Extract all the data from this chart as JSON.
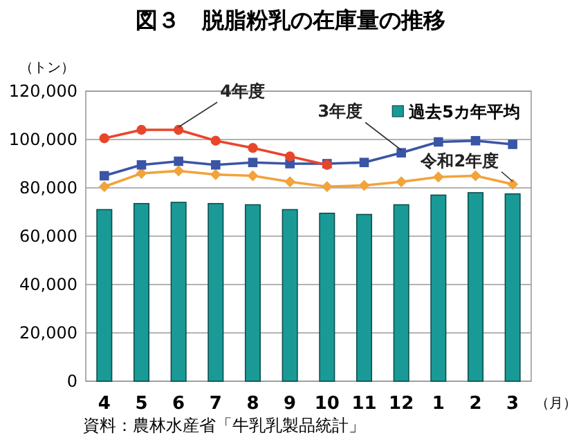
{
  "chart_data": {
    "type": "bar",
    "title": "図３　脱脂粉乳の在庫量の推移",
    "ylabel": "（トン）",
    "xlabel": "（月）",
    "categories": [
      "4",
      "5",
      "6",
      "7",
      "8",
      "9",
      "10",
      "11",
      "12",
      "1",
      "2",
      "3"
    ],
    "series": [
      {
        "name": "過去5カ年平均",
        "color": "#1a9a96",
        "values": [
          71000,
          73500,
          74000,
          73500,
          73000,
          71000,
          69500,
          69000,
          73000,
          77000,
          78000,
          77500
        ]
      },
      {
        "name": "4年度",
        "type": "line",
        "color": "#e8462a",
        "marker": "circle",
        "values": [
          100500,
          104000,
          104000,
          99500,
          96500,
          93000,
          89500,
          null,
          null,
          null,
          null,
          null
        ]
      },
      {
        "name": "3年度",
        "type": "line",
        "color": "#3a55a6",
        "marker": "square",
        "values": [
          85000,
          89500,
          91000,
          89500,
          90500,
          90000,
          90000,
          90500,
          94500,
          99000,
          99500,
          98000
        ]
      },
      {
        "name": "令和2年度",
        "type": "line",
        "color": "#f2a33a",
        "marker": "diamond",
        "values": [
          80500,
          86000,
          87000,
          85500,
          85000,
          82500,
          80500,
          81000,
          82500,
          84500,
          85000,
          81500
        ]
      }
    ],
    "ylim": [
      0,
      120000
    ],
    "yticks": [
      {
        "value": 0,
        "label": "0"
      },
      {
        "value": 20000,
        "label": "20,000"
      },
      {
        "value": 40000,
        "label": "40,000"
      },
      {
        "value": 60000,
        "label": "60,000"
      },
      {
        "value": 80000,
        "label": "80,000"
      },
      {
        "value": 100000,
        "label": "100,000"
      },
      {
        "value": 120000,
        "label": "120,000"
      }
    ],
    "grid": "y",
    "legend": "top right",
    "annotations": [
      "資料：農林水産省「牛乳乳製品統計」"
    ]
  }
}
